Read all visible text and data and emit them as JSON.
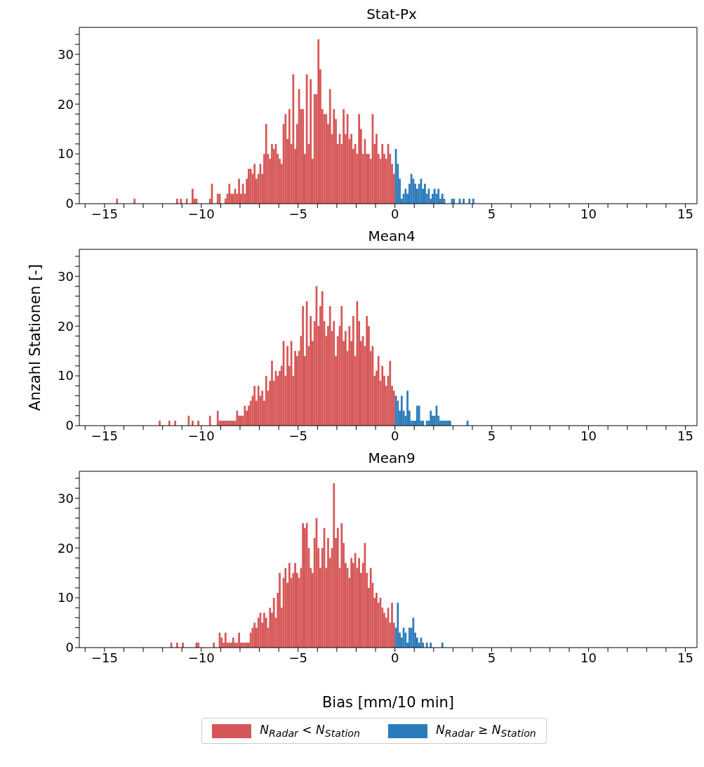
{
  "chart_data": [
    {
      "type": "histogram",
      "title": "Stat-Px",
      "xlim": [
        -16.3,
        15.6
      ],
      "ylim": [
        0,
        35.4
      ],
      "xticks": [
        {
          "value": -16,
          "label": null
        },
        {
          "value": -15,
          "label": "−15"
        },
        {
          "value": -14,
          "label": null
        },
        {
          "value": -13,
          "label": null
        },
        {
          "value": -12,
          "label": null
        },
        {
          "value": -11,
          "label": null
        },
        {
          "value": -10,
          "label": "−10"
        },
        {
          "value": -9,
          "label": null
        },
        {
          "value": -8,
          "label": null
        },
        {
          "value": -7,
          "label": null
        },
        {
          "value": -6,
          "label": null
        },
        {
          "value": -5,
          "label": "−5"
        },
        {
          "value": -4,
          "label": null
        },
        {
          "value": -3,
          "label": null
        },
        {
          "value": -2,
          "label": null
        },
        {
          "value": -1,
          "label": null
        },
        0,
        {
          "value": 1,
          "label": null
        },
        {
          "value": 2,
          "label": null
        },
        {
          "value": 3,
          "label": null
        },
        {
          "value": 4,
          "label": null
        },
        5,
        {
          "value": 6,
          "label": null
        },
        {
          "value": 7,
          "label": null
        },
        {
          "value": 8,
          "label": null
        },
        {
          "value": 9,
          "label": null
        },
        10,
        {
          "value": 11,
          "label": null
        },
        {
          "value": 12,
          "label": null
        },
        {
          "value": 13,
          "label": null
        },
        {
          "value": 14,
          "label": null
        },
        15
      ],
      "yticks": [
        0,
        {
          "value": 2,
          "label": null
        },
        {
          "value": 4,
          "label": null
        },
        {
          "value": 6,
          "label": null
        },
        {
          "value": 8,
          "label": null
        },
        10,
        {
          "value": 12,
          "label": null
        },
        {
          "value": 14,
          "label": null
        },
        {
          "value": 16,
          "label": null
        },
        {
          "value": 18,
          "label": null
        },
        20,
        {
          "value": 22,
          "label": null
        },
        {
          "value": 24,
          "label": null
        },
        {
          "value": 26,
          "label": null
        },
        {
          "value": 28,
          "label": null
        },
        30,
        {
          "value": 32,
          "label": null
        },
        {
          "value": 34,
          "label": null
        }
      ],
      "bins": [
        -15,
        -14.9,
        -14.8,
        -14.7,
        -14.6,
        -14.5,
        -14.4,
        -14.3,
        -14.2,
        -14.1,
        -14,
        -13.9,
        -13.8,
        -13.7,
        -13.6,
        -13.5,
        -13.4,
        -13.3,
        -13.2,
        -13.1,
        -13,
        -12.9,
        -12.8,
        -12.7,
        -12.6,
        -12.5,
        -12.4,
        -12.3,
        -12.2,
        -12.1,
        -12,
        -11.9,
        -11.8,
        -11.7,
        -11.6,
        -11.5,
        -11.4,
        -11.3,
        -11.2,
        -11.1,
        -11,
        -10.9,
        -10.8,
        -10.7,
        -10.6,
        -10.5,
        -10.4,
        -10.3,
        -10.2,
        -10.1,
        -10,
        -9.9,
        -9.8,
        -9.7,
        -9.6,
        -9.5,
        -9.4,
        -9.3,
        -9.2,
        -9.1,
        -9,
        -8.9,
        -8.8,
        -8.7,
        -8.6,
        -8.5,
        -8.4,
        -8.3,
        -8.2,
        -8.1,
        -8,
        -7.9,
        -7.8,
        -7.7,
        -7.6,
        -7.5,
        -7.4,
        -7.3,
        -7.2,
        -7.1,
        -7,
        -6.9,
        -6.8,
        -6.7,
        -6.6,
        -6.5,
        -6.4,
        -6.3,
        -6.2,
        -6.1,
        -6,
        -5.9,
        -5.8,
        -5.7,
        -5.6,
        -5.5,
        -5.4,
        -5.3,
        -5.2,
        -5.1,
        -5,
        -4.9,
        -4.8,
        -4.7,
        -4.6,
        -4.5,
        -4.4,
        -4.3,
        -4.2,
        -4.1,
        -4,
        -3.9,
        -3.8,
        -3.7,
        -3.6,
        -3.5,
        -3.4,
        -3.3,
        -3.2,
        -3.1,
        -3,
        -2.9,
        -2.8,
        -2.7,
        -2.6,
        -2.5,
        -2.4,
        -2.3,
        -2.2,
        -2.1,
        -2,
        -1.9,
        -1.8,
        -1.7,
        -1.6,
        -1.5,
        -1.4,
        -1.3,
        -1.2,
        -1.1,
        -1,
        -0.9,
        -0.8,
        -0.7,
        -0.6,
        -0.5,
        -0.4,
        -0.3,
        -0.2,
        -0.1,
        0,
        0.1,
        0.2,
        0.3,
        0.4,
        0.5,
        0.6,
        0.7,
        0.8,
        0.9,
        1,
        1.1,
        1.2,
        1.3,
        1.4,
        1.5,
        1.6,
        1.7,
        1.8,
        1.9,
        2,
        2.1,
        2.2,
        2.3,
        2.4,
        2.5,
        2.6,
        2.7,
        2.8,
        2.9,
        3,
        3.1,
        3.2,
        3.3,
        3.4,
        3.5,
        3.6,
        3.7,
        3.8,
        3.9,
        4,
        4.1,
        4.2,
        4.3,
        4.4,
        4.5,
        4.6,
        4.7,
        4.8,
        4.9,
        5
      ],
      "series": [
        {
          "color": "#d65757",
          "values": [
            0,
            0,
            0,
            0,
            0,
            0,
            1,
            0,
            0,
            0,
            0,
            0,
            0,
            0,
            0,
            1,
            0,
            0,
            0,
            0,
            0,
            0,
            0,
            0,
            0,
            0,
            0,
            0,
            0,
            0,
            0,
            0,
            0,
            0,
            0,
            0,
            0,
            1,
            0,
            1,
            0,
            0,
            1,
            0,
            0,
            3,
            1,
            1,
            0,
            0,
            0,
            0,
            0,
            0,
            1,
            4,
            0,
            0,
            2,
            2,
            0,
            0,
            1,
            2,
            4,
            2,
            2,
            3,
            2,
            5,
            2,
            4,
            2,
            5,
            7,
            7,
            6,
            8,
            5,
            6,
            8,
            6,
            10,
            16,
            10,
            9,
            12,
            11,
            12,
            10,
            9,
            8,
            16,
            18,
            13,
            19,
            12,
            26,
            11,
            16,
            23,
            19,
            19,
            10,
            26,
            12,
            25,
            9,
            22,
            22,
            33,
            27,
            19,
            18,
            18,
            16,
            23,
            14,
            19,
            17,
            12,
            14,
            12,
            19,
            14,
            18,
            13,
            14,
            11,
            12,
            10,
            18,
            15,
            10,
            13,
            10,
            10,
            9,
            18,
            12,
            14,
            10,
            9,
            12,
            10,
            9,
            12,
            10,
            8,
            6,
            null,
            null,
            null,
            null,
            null,
            null,
            null,
            null,
            null,
            null,
            null,
            null,
            null,
            null,
            null,
            null,
            null,
            null,
            null,
            null,
            null,
            null,
            null,
            null,
            null,
            null,
            null,
            null,
            null,
            null,
            null,
            null,
            null,
            null,
            null,
            null,
            null,
            null,
            null,
            null,
            null,
            null,
            null,
            null,
            null,
            null,
            null,
            null,
            null,
            null
          ]
        },
        {
          "color": "#2b7bba",
          "values": [
            null,
            null,
            null,
            null,
            null,
            null,
            null,
            null,
            null,
            null,
            null,
            null,
            null,
            null,
            null,
            null,
            null,
            null,
            null,
            null,
            null,
            null,
            null,
            null,
            null,
            null,
            null,
            null,
            null,
            null,
            null,
            null,
            null,
            null,
            null,
            null,
            null,
            null,
            null,
            null,
            null,
            null,
            null,
            null,
            null,
            null,
            null,
            null,
            null,
            null,
            null,
            null,
            null,
            null,
            null,
            null,
            null,
            null,
            null,
            null,
            null,
            null,
            null,
            null,
            null,
            null,
            null,
            null,
            null,
            null,
            null,
            null,
            null,
            null,
            null,
            null,
            null,
            null,
            null,
            null,
            null,
            null,
            null,
            null,
            null,
            null,
            null,
            null,
            null,
            null,
            null,
            null,
            null,
            null,
            null,
            null,
            null,
            null,
            null,
            null,
            null,
            null,
            null,
            null,
            null,
            null,
            null,
            null,
            null,
            null,
            null,
            null,
            null,
            null,
            null,
            null,
            null,
            null,
            null,
            null,
            null,
            null,
            null,
            null,
            null,
            null,
            null,
            null,
            null,
            null,
            null,
            null,
            null,
            null,
            null,
            null,
            null,
            null,
            null,
            null,
            null,
            null,
            null,
            null,
            null,
            null,
            null,
            null,
            null,
            null,
            11,
            8,
            5,
            1,
            2,
            3,
            2,
            4,
            6,
            5,
            4,
            3,
            4,
            5,
            3,
            4,
            2,
            3,
            1,
            2,
            3,
            2,
            3,
            1,
            2,
            1,
            0,
            0,
            0,
            1,
            1,
            0,
            0,
            1,
            0,
            1,
            0,
            0,
            1,
            0,
            1,
            0,
            0,
            0,
            0,
            0,
            0,
            0,
            0,
            0
          ]
        }
      ]
    },
    {
      "type": "histogram",
      "title": "Mean4",
      "ylabel": "Anzahl Stationen [-]",
      "xlim": [
        -16.3,
        15.6
      ],
      "ylim": [
        0,
        35.4
      ],
      "xticks": [
        {
          "value": -16,
          "label": null
        },
        {
          "value": -15,
          "label": "−15"
        },
        {
          "value": -14,
          "label": null
        },
        {
          "value": -13,
          "label": null
        },
        {
          "value": -12,
          "label": null
        },
        {
          "value": -11,
          "label": null
        },
        {
          "value": -10,
          "label": "−10"
        },
        {
          "value": -9,
          "label": null
        },
        {
          "value": -8,
          "label": null
        },
        {
          "value": -7,
          "label": null
        },
        {
          "value": -6,
          "label": null
        },
        {
          "value": -5,
          "label": "−5"
        },
        {
          "value": -4,
          "label": null
        },
        {
          "value": -3,
          "label": null
        },
        {
          "value": -2,
          "label": null
        },
        {
          "value": -1,
          "label": null
        },
        0,
        {
          "value": 1,
          "label": null
        },
        {
          "value": 2,
          "label": null
        },
        {
          "value": 3,
          "label": null
        },
        {
          "value": 4,
          "label": null
        },
        5,
        {
          "value": 6,
          "label": null
        },
        {
          "value": 7,
          "label": null
        },
        {
          "value": 8,
          "label": null
        },
        {
          "value": 9,
          "label": null
        },
        10,
        {
          "value": 11,
          "label": null
        },
        {
          "value": 12,
          "label": null
        },
        {
          "value": 13,
          "label": null
        },
        {
          "value": 14,
          "label": null
        },
        15
      ],
      "yticks": [
        0,
        {
          "value": 2,
          "label": null
        },
        {
          "value": 4,
          "label": null
        },
        {
          "value": 6,
          "label": null
        },
        {
          "value": 8,
          "label": null
        },
        10,
        {
          "value": 12,
          "label": null
        },
        {
          "value": 14,
          "label": null
        },
        {
          "value": 16,
          "label": null
        },
        {
          "value": 18,
          "label": null
        },
        20,
        {
          "value": 22,
          "label": null
        },
        {
          "value": 24,
          "label": null
        },
        {
          "value": 26,
          "label": null
        },
        {
          "value": 28,
          "label": null
        },
        30,
        {
          "value": 32,
          "label": null
        },
        {
          "value": 34,
          "label": null
        }
      ],
      "bins": [
        -15,
        -14.9,
        -14.8,
        -14.7,
        -14.6,
        -14.5,
        -14.4,
        -14.3,
        -14.2,
        -14.1,
        -14,
        -13.9,
        -13.8,
        -13.7,
        -13.6,
        -13.5,
        -13.4,
        -13.3,
        -13.2,
        -13.1,
        -13,
        -12.9,
        -12.8,
        -12.7,
        -12.6,
        -12.5,
        -12.4,
        -12.3,
        -12.2,
        -12.1,
        -12,
        -11.9,
        -11.8,
        -11.7,
        -11.6,
        -11.5,
        -11.4,
        -11.3,
        -11.2,
        -11.1,
        -11,
        -10.9,
        -10.8,
        -10.7,
        -10.6,
        -10.5,
        -10.4,
        -10.3,
        -10.2,
        -10.1,
        -10,
        -9.9,
        -9.8,
        -9.7,
        -9.6,
        -9.5,
        -9.4,
        -9.3,
        -9.2,
        -9.1,
        -9,
        -8.9,
        -8.8,
        -8.7,
        -8.6,
        -8.5,
        -8.4,
        -8.3,
        -8.2,
        -8.1,
        -8,
        -7.9,
        -7.8,
        -7.7,
        -7.6,
        -7.5,
        -7.4,
        -7.3,
        -7.2,
        -7.1,
        -7,
        -6.9,
        -6.8,
        -6.7,
        -6.6,
        -6.5,
        -6.4,
        -6.3,
        -6.2,
        -6.1,
        -6,
        -5.9,
        -5.8,
        -5.7,
        -5.6,
        -5.5,
        -5.4,
        -5.3,
        -5.2,
        -5.1,
        -5,
        -4.9,
        -4.8,
        -4.7,
        -4.6,
        -4.5,
        -4.4,
        -4.3,
        -4.2,
        -4.1,
        -4,
        -3.9,
        -3.8,
        -3.7,
        -3.6,
        -3.5,
        -3.4,
        -3.3,
        -3.2,
        -3.1,
        -3,
        -2.9,
        -2.8,
        -2.7,
        -2.6,
        -2.5,
        -2.4,
        -2.3,
        -2.2,
        -2.1,
        -2,
        -1.9,
        -1.8,
        -1.7,
        -1.6,
        -1.5,
        -1.4,
        -1.3,
        -1.2,
        -1.1,
        -1,
        -0.9,
        -0.8,
        -0.7,
        -0.6,
        -0.5,
        -0.4,
        -0.3,
        -0.2,
        -0.1,
        0,
        0.1,
        0.2,
        0.3,
        0.4,
        0.5,
        0.6,
        0.7,
        0.8,
        0.9,
        1,
        1.1,
        1.2,
        1.3,
        1.4,
        1.5,
        1.6,
        1.7,
        1.8,
        1.9,
        2,
        2.1,
        2.2,
        2.3,
        2.4,
        2.5,
        2.6,
        2.7,
        2.8,
        2.9,
        3,
        3.1,
        3.2,
        3.3,
        3.4,
        3.5,
        3.6,
        3.7,
        3.8,
        3.9,
        4,
        4.1,
        4.2,
        4.3,
        4.4,
        4.5,
        4.6,
        4.7,
        4.8,
        4.9,
        5
      ],
      "series": [
        {
          "color": "#d65757",
          "values": [
            0,
            0,
            0,
            0,
            0,
            0,
            0,
            0,
            0,
            0,
            0,
            0,
            0,
            0,
            0,
            0,
            0,
            0,
            0,
            0,
            0,
            0,
            0,
            0,
            0,
            0,
            0,
            0,
            1,
            0,
            0,
            0,
            0,
            1,
            0,
            0,
            1,
            0,
            0,
            0,
            0,
            0,
            0,
            2,
            0,
            1,
            0,
            0,
            1,
            0,
            0,
            0,
            0,
            0,
            2,
            0,
            0,
            0,
            3,
            1,
            1,
            1,
            1,
            1,
            1,
            1,
            1,
            1,
            3,
            2,
            2,
            2,
            4,
            3,
            4,
            5,
            6,
            8,
            5,
            8,
            6,
            7,
            5,
            10,
            7,
            9,
            13,
            9,
            11,
            10,
            11,
            12,
            17,
            10,
            16,
            12,
            17,
            10,
            15,
            14,
            15,
            18,
            24,
            14,
            25,
            16,
            22,
            17,
            21,
            28,
            20,
            24,
            27,
            21,
            18,
            20,
            24,
            19,
            21,
            14,
            18,
            20,
            24,
            17,
            19,
            15,
            20,
            17,
            22,
            14,
            25,
            21,
            17,
            18,
            16,
            22,
            20,
            15,
            16,
            10,
            11,
            14,
            9,
            12,
            10,
            8,
            10,
            13,
            8,
            7,
            null,
            null,
            null,
            null,
            null,
            null,
            null,
            null,
            null,
            null,
            null,
            null,
            null,
            null,
            null,
            null,
            null,
            null,
            null,
            null,
            null,
            null,
            null,
            null,
            null,
            null,
            null,
            null,
            null,
            null,
            null,
            null,
            null,
            null,
            null,
            null,
            null,
            null,
            null,
            null,
            null,
            null,
            null,
            null,
            null,
            null,
            null,
            null,
            null,
            null
          ]
        },
        {
          "color": "#2b7bba",
          "values": [
            null,
            null,
            null,
            null,
            null,
            null,
            null,
            null,
            null,
            null,
            null,
            null,
            null,
            null,
            null,
            null,
            null,
            null,
            null,
            null,
            null,
            null,
            null,
            null,
            null,
            null,
            null,
            null,
            null,
            null,
            null,
            null,
            null,
            null,
            null,
            null,
            null,
            null,
            null,
            null,
            null,
            null,
            null,
            null,
            null,
            null,
            null,
            null,
            null,
            null,
            null,
            null,
            null,
            null,
            null,
            null,
            null,
            null,
            null,
            null,
            null,
            null,
            null,
            null,
            null,
            null,
            null,
            null,
            null,
            null,
            null,
            null,
            null,
            null,
            null,
            null,
            null,
            null,
            null,
            null,
            null,
            null,
            null,
            null,
            null,
            null,
            null,
            null,
            null,
            null,
            null,
            null,
            null,
            null,
            null,
            null,
            null,
            null,
            null,
            null,
            null,
            null,
            null,
            null,
            null,
            null,
            null,
            null,
            null,
            null,
            null,
            null,
            null,
            null,
            null,
            null,
            null,
            null,
            null,
            null,
            null,
            null,
            null,
            null,
            null,
            null,
            null,
            null,
            null,
            null,
            null,
            null,
            null,
            null,
            null,
            null,
            null,
            null,
            null,
            null,
            null,
            null,
            null,
            null,
            null,
            null,
            null,
            null,
            null,
            null,
            6,
            5,
            3,
            6,
            3,
            2,
            7,
            3,
            1,
            1,
            1,
            4,
            4,
            1,
            1,
            0,
            1,
            1,
            3,
            2,
            2,
            4,
            2,
            1,
            1,
            1,
            1,
            1,
            1,
            0,
            0,
            0,
            0,
            0,
            0,
            0,
            0,
            1,
            0,
            0,
            0,
            0,
            0,
            0,
            0,
            0,
            0,
            0,
            0,
            0
          ]
        }
      ]
    },
    {
      "type": "histogram",
      "title": "Mean9",
      "xlabel": "Bias [mm/10 min]",
      "legend": "bottom",
      "xlim": [
        -16.3,
        15.6
      ],
      "ylim": [
        0,
        35.4
      ],
      "xticks": [
        {
          "value": -16,
          "label": null
        },
        {
          "value": -15,
          "label": "−15"
        },
        {
          "value": -14,
          "label": null
        },
        {
          "value": -13,
          "label": null
        },
        {
          "value": -12,
          "label": null
        },
        {
          "value": -11,
          "label": null
        },
        {
          "value": -10,
          "label": "−10"
        },
        {
          "value": -9,
          "label": null
        },
        {
          "value": -8,
          "label": null
        },
        {
          "value": -7,
          "label": null
        },
        {
          "value": -6,
          "label": null
        },
        {
          "value": -5,
          "label": "−5"
        },
        {
          "value": -4,
          "label": null
        },
        {
          "value": -3,
          "label": null
        },
        {
          "value": -2,
          "label": null
        },
        {
          "value": -1,
          "label": null
        },
        0,
        {
          "value": 1,
          "label": null
        },
        {
          "value": 2,
          "label": null
        },
        {
          "value": 3,
          "label": null
        },
        {
          "value": 4,
          "label": null
        },
        5,
        {
          "value": 6,
          "label": null
        },
        {
          "value": 7,
          "label": null
        },
        {
          "value": 8,
          "label": null
        },
        {
          "value": 9,
          "label": null
        },
        10,
        {
          "value": 11,
          "label": null
        },
        {
          "value": 12,
          "label": null
        },
        {
          "value": 13,
          "label": null
        },
        {
          "value": 14,
          "label": null
        },
        15
      ],
      "yticks": [
        0,
        {
          "value": 2,
          "label": null
        },
        {
          "value": 4,
          "label": null
        },
        {
          "value": 6,
          "label": null
        },
        {
          "value": 8,
          "label": null
        },
        10,
        {
          "value": 12,
          "label": null
        },
        {
          "value": 14,
          "label": null
        },
        {
          "value": 16,
          "label": null
        },
        {
          "value": 18,
          "label": null
        },
        20,
        {
          "value": 22,
          "label": null
        },
        {
          "value": 24,
          "label": null
        },
        {
          "value": 26,
          "label": null
        },
        {
          "value": 28,
          "label": null
        },
        30,
        {
          "value": 32,
          "label": null
        },
        {
          "value": 34,
          "label": null
        }
      ],
      "bins": [
        -15,
        -14.9,
        -14.8,
        -14.7,
        -14.6,
        -14.5,
        -14.4,
        -14.3,
        -14.2,
        -14.1,
        -14,
        -13.9,
        -13.8,
        -13.7,
        -13.6,
        -13.5,
        -13.4,
        -13.3,
        -13.2,
        -13.1,
        -13,
        -12.9,
        -12.8,
        -12.7,
        -12.6,
        -12.5,
        -12.4,
        -12.3,
        -12.2,
        -12.1,
        -12,
        -11.9,
        -11.8,
        -11.7,
        -11.6,
        -11.5,
        -11.4,
        -11.3,
        -11.2,
        -11.1,
        -11,
        -10.9,
        -10.8,
        -10.7,
        -10.6,
        -10.5,
        -10.4,
        -10.3,
        -10.2,
        -10.1,
        -10,
        -9.9,
        -9.8,
        -9.7,
        -9.6,
        -9.5,
        -9.4,
        -9.3,
        -9.2,
        -9.1,
        -9,
        -8.9,
        -8.8,
        -8.7,
        -8.6,
        -8.5,
        -8.4,
        -8.3,
        -8.2,
        -8.1,
        -8,
        -7.9,
        -7.8,
        -7.7,
        -7.6,
        -7.5,
        -7.4,
        -7.3,
        -7.2,
        -7.1,
        -7,
        -6.9,
        -6.8,
        -6.7,
        -6.6,
        -6.5,
        -6.4,
        -6.3,
        -6.2,
        -6.1,
        -6,
        -5.9,
        -5.8,
        -5.7,
        -5.6,
        -5.5,
        -5.4,
        -5.3,
        -5.2,
        -5.1,
        -5,
        -4.9,
        -4.8,
        -4.7,
        -4.6,
        -4.5,
        -4.4,
        -4.3,
        -4.2,
        -4.1,
        -4,
        -3.9,
        -3.8,
        -3.7,
        -3.6,
        -3.5,
        -3.4,
        -3.3,
        -3.2,
        -3.1,
        -3,
        -2.9,
        -2.8,
        -2.7,
        -2.6,
        -2.5,
        -2.4,
        -2.3,
        -2.2,
        -2.1,
        -2,
        -1.9,
        -1.8,
        -1.7,
        -1.6,
        -1.5,
        -1.4,
        -1.3,
        -1.2,
        -1.1,
        -1,
        -0.9,
        -0.8,
        -0.7,
        -0.6,
        -0.5,
        -0.4,
        -0.3,
        -0.2,
        -0.1,
        0,
        0.1,
        0.2,
        0.3,
        0.4,
        0.5,
        0.6,
        0.7,
        0.8,
        0.9,
        1,
        1.1,
        1.2,
        1.3,
        1.4,
        1.5,
        1.6,
        1.7,
        1.8,
        1.9,
        2,
        2.1,
        2.2,
        2.3,
        2.4,
        2.5,
        2.6,
        2.7,
        2.8,
        2.9,
        3,
        3.1,
        3.2,
        3.3,
        3.4,
        3.5,
        3.6,
        3.7,
        3.8,
        3.9,
        4,
        4.1,
        4.2,
        4.3,
        4.4,
        4.5,
        4.6,
        4.7,
        4.8,
        4.9,
        5
      ],
      "series": [
        {
          "name": "N$_{Radar}$ < N$_{Station}$",
          "color": "#d65757",
          "values": [
            0,
            0,
            0,
            0,
            0,
            0,
            0,
            0,
            0,
            0,
            0,
            0,
            0,
            0,
            0,
            0,
            0,
            0,
            0,
            0,
            0,
            0,
            0,
            0,
            0,
            0,
            0,
            0,
            0,
            0,
            0,
            0,
            0,
            0,
            1,
            0,
            0,
            1,
            0,
            0,
            1,
            0,
            0,
            0,
            0,
            0,
            0,
            1,
            1,
            0,
            0,
            0,
            0,
            0,
            0,
            0,
            1,
            0,
            0,
            3,
            2,
            1,
            3,
            1,
            1,
            1,
            2,
            1,
            1,
            3,
            1,
            1,
            1,
            1,
            1,
            3,
            4,
            5,
            4,
            6,
            7,
            5,
            7,
            6,
            4,
            8,
            7,
            10,
            6,
            11,
            15,
            8,
            14,
            16,
            13,
            17,
            14,
            15,
            17,
            15,
            14,
            16,
            25,
            24,
            25,
            20,
            16,
            15,
            22,
            26,
            20,
            16,
            20,
            24,
            16,
            22,
            18,
            20,
            33,
            22,
            24,
            16,
            25,
            21,
            17,
            16,
            14,
            18,
            17,
            19,
            16,
            18,
            15,
            17,
            21,
            15,
            12,
            16,
            13,
            10,
            11,
            9,
            10,
            8,
            7,
            6,
            8,
            5,
            9,
            5,
            null,
            null,
            null,
            null,
            null,
            null,
            null,
            null,
            null,
            null,
            null,
            null,
            null,
            null,
            null,
            null,
            null,
            null,
            null,
            null,
            null,
            null,
            null,
            null,
            null,
            null,
            null,
            null,
            null,
            null,
            null,
            null,
            null,
            null,
            null,
            null,
            null,
            null,
            null,
            null,
            null,
            null,
            null,
            null,
            null,
            null,
            null,
            null,
            null,
            null
          ]
        },
        {
          "name": "N$_{Radar}$ ≥ N$_{Station}$",
          "color": "#2b7bba",
          "values": [
            null,
            null,
            null,
            null,
            null,
            null,
            null,
            null,
            null,
            null,
            null,
            null,
            null,
            null,
            null,
            null,
            null,
            null,
            null,
            null,
            null,
            null,
            null,
            null,
            null,
            null,
            null,
            null,
            null,
            null,
            null,
            null,
            null,
            null,
            null,
            null,
            null,
            null,
            null,
            null,
            null,
            null,
            null,
            null,
            null,
            null,
            null,
            null,
            null,
            null,
            null,
            null,
            null,
            null,
            null,
            null,
            null,
            null,
            null,
            null,
            null,
            null,
            null,
            null,
            null,
            null,
            null,
            null,
            null,
            null,
            null,
            null,
            null,
            null,
            null,
            null,
            null,
            null,
            null,
            null,
            null,
            null,
            null,
            null,
            null,
            null,
            null,
            null,
            null,
            null,
            null,
            null,
            null,
            null,
            null,
            null,
            null,
            null,
            null,
            null,
            null,
            null,
            null,
            null,
            null,
            null,
            null,
            null,
            null,
            null,
            null,
            null,
            null,
            null,
            null,
            null,
            null,
            null,
            null,
            null,
            null,
            null,
            null,
            null,
            null,
            null,
            null,
            null,
            null,
            null,
            null,
            null,
            null,
            null,
            null,
            null,
            null,
            null,
            null,
            null,
            null,
            null,
            null,
            null,
            null,
            null,
            null,
            null,
            null,
            null,
            4,
            9,
            3,
            2,
            4,
            3,
            1,
            4,
            4,
            6,
            3,
            2,
            1,
            2,
            1,
            0,
            1,
            0,
            1,
            0,
            0,
            0,
            0,
            0,
            1,
            0,
            0,
            0,
            0,
            0,
            0,
            0,
            0,
            0,
            0,
            0,
            0,
            0,
            0,
            0,
            0,
            0,
            0,
            0,
            0,
            0,
            0,
            0,
            0,
            0
          ]
        }
      ]
    }
  ]
}
